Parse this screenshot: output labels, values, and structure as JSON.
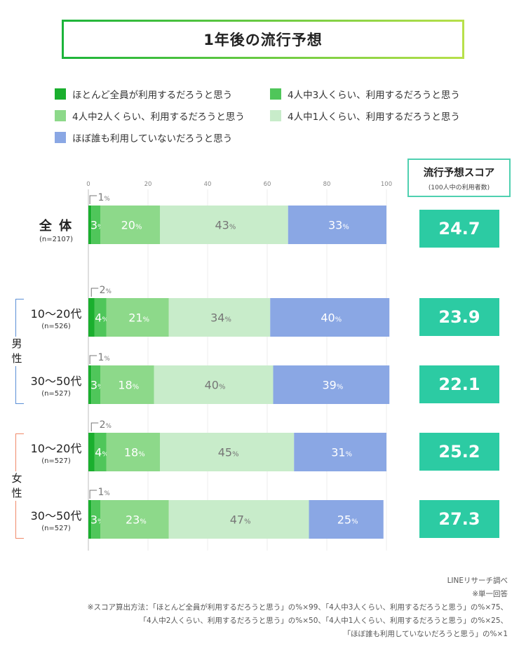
{
  "title": "1年後の流行予想",
  "legend": [
    {
      "label": "ほとんど全員が利用するだろうと思う",
      "color": "#1aaf2e"
    },
    {
      "label": "4人中3人くらい、利用するだろうと思う",
      "color": "#4fc65a"
    },
    {
      "label": "4人中2人くらい、利用するだろうと思う",
      "color": "#8dd98a"
    },
    {
      "label": "4人中1人くらい、利用するだろうと思う",
      "color": "#c8ecca"
    },
    {
      "label": "ほぼ誰も利用していないだろうと思う",
      "color": "#8aa7e4"
    }
  ],
  "score_header": {
    "title": "流行予想スコア",
    "subtitle": "(100人中の利用者数)"
  },
  "gender_labels": {
    "male": "男性",
    "female": "女性"
  },
  "chart_data": {
    "type": "bar",
    "orientation": "horizontal",
    "stacked": true,
    "xlim": [
      0,
      100
    ],
    "x_ticks": [
      0,
      20,
      40,
      60,
      80,
      100
    ],
    "unit_suffix": "%",
    "categories": [
      {
        "label": "全 体",
        "n": "(n=2107)",
        "group": ""
      },
      {
        "label": "10〜20代",
        "n": "(n=526)",
        "group": "男性"
      },
      {
        "label": "30〜50代",
        "n": "(n=527)",
        "group": "男性"
      },
      {
        "label": "10〜20代",
        "n": "(n=527)",
        "group": "女性"
      },
      {
        "label": "30〜50代",
        "n": "(n=527)",
        "group": "女性"
      }
    ],
    "series": [
      {
        "name": "ほとんど全員が利用するだろうと思う",
        "color": "#1aaf2e",
        "values": [
          1,
          2,
          1,
          2,
          1
        ]
      },
      {
        "name": "4人中3人くらい、利用するだろうと思う",
        "color": "#4fc65a",
        "values": [
          3,
          4,
          3,
          4,
          3
        ]
      },
      {
        "name": "4人中2人くらい、利用するだろうと思う",
        "color": "#8dd98a",
        "values": [
          20,
          21,
          18,
          18,
          23
        ]
      },
      {
        "name": "4人中1人くらい、利用するだろうと思う",
        "color": "#c8ecca",
        "values": [
          43,
          34,
          40,
          45,
          47
        ]
      },
      {
        "name": "ほぼ誰も利用していないだろうと思う",
        "color": "#8aa7e4",
        "values": [
          33,
          40,
          39,
          31,
          25
        ]
      }
    ],
    "scores": [
      "24.7",
      "23.9",
      "22.1",
      "25.2",
      "27.3"
    ]
  },
  "notes": [
    "LINEリサーチ調べ",
    "※単一回答",
    "※スコア算出方法：「ほとんど全員が利用するだろうと思う」の%×99、「4人中3人くらい、利用するだろうと思う」の%×75、",
    "「4人中2人くらい、利用するだろうと思う」の%×50、「4人中1人くらい、利用するだろうと思う」の%×25、",
    "「ほぼ誰も利用していないだろうと思う」の%×1"
  ]
}
